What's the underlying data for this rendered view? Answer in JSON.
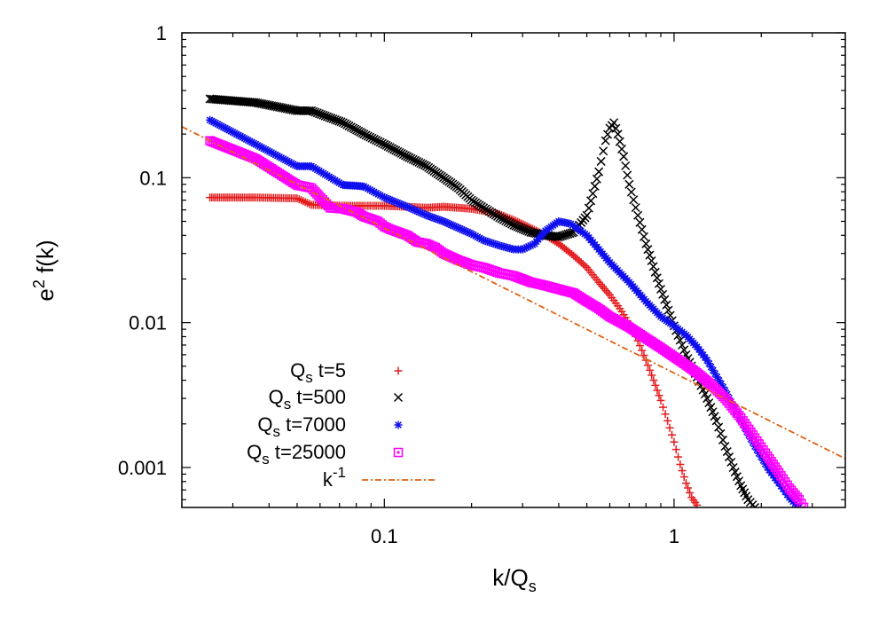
{
  "chart_data": {
    "type": "scatter",
    "title": "",
    "xlabel": "k/Q",
    "xlabel_sub": "s",
    "ylabel": "e",
    "ylabel_sup": "2",
    "ylabel_tail": " f(k)",
    "xscale": "log",
    "yscale": "log",
    "xlim": [
      0.02,
      3.9
    ],
    "ylim": [
      0.00053,
      1
    ],
    "x_ticks": [
      {
        "value": 0.1,
        "label": "0.1"
      },
      {
        "value": 1,
        "label": "1"
      }
    ],
    "y_ticks": [
      {
        "value": 0.001,
        "label": "0.001"
      },
      {
        "value": 0.01,
        "label": "0.01"
      },
      {
        "value": 0.1,
        "label": "0.1"
      },
      {
        "value": 1,
        "label": "1"
      }
    ],
    "grid": false,
    "legend_position": "bottom-left",
    "series": [
      {
        "name": "t=5",
        "name_prefix": "Q",
        "name_sub": "s",
        "marker": "plus",
        "color": "#e41a1c",
        "points": [
          [
            0.025,
            0.073
          ],
          [
            0.036,
            0.073
          ],
          [
            0.05,
            0.072
          ],
          [
            0.056,
            0.065
          ],
          [
            0.072,
            0.064
          ],
          [
            0.085,
            0.064
          ],
          [
            0.1,
            0.064
          ],
          [
            0.12,
            0.063
          ],
          [
            0.14,
            0.062
          ],
          [
            0.16,
            0.063
          ],
          [
            0.18,
            0.062
          ],
          [
            0.2,
            0.061
          ],
          [
            0.22,
            0.059
          ],
          [
            0.25,
            0.056
          ],
          [
            0.28,
            0.051
          ],
          [
            0.32,
            0.045
          ],
          [
            0.36,
            0.04
          ],
          [
            0.4,
            0.035
          ],
          [
            0.45,
            0.029
          ],
          [
            0.5,
            0.024
          ],
          [
            0.55,
            0.019
          ],
          [
            0.6,
            0.0155
          ],
          [
            0.65,
            0.0125
          ],
          [
            0.7,
            0.0098
          ],
          [
            0.75,
            0.0075
          ],
          [
            0.8,
            0.0055
          ],
          [
            0.85,
            0.004
          ],
          [
            0.9,
            0.0029
          ],
          [
            0.95,
            0.0021
          ],
          [
            1.0,
            0.0015
          ],
          [
            1.05,
            0.00105
          ],
          [
            1.1,
            0.00078
          ],
          [
            1.15,
            0.00062
          ],
          [
            1.2,
            0.00055
          ]
        ]
      },
      {
        "name": "t=500",
        "name_prefix": "Q",
        "name_sub": "s",
        "marker": "cross",
        "color": "#000000",
        "points": [
          [
            0.025,
            0.35
          ],
          [
            0.036,
            0.33
          ],
          [
            0.05,
            0.29
          ],
          [
            0.056,
            0.29
          ],
          [
            0.072,
            0.24
          ],
          [
            0.078,
            0.22
          ],
          [
            0.085,
            0.2
          ],
          [
            0.1,
            0.17
          ],
          [
            0.12,
            0.14
          ],
          [
            0.14,
            0.12
          ],
          [
            0.16,
            0.1
          ],
          [
            0.18,
            0.085
          ],
          [
            0.2,
            0.07
          ],
          [
            0.22,
            0.062
          ],
          [
            0.25,
            0.053
          ],
          [
            0.28,
            0.047
          ],
          [
            0.32,
            0.042
          ],
          [
            0.36,
            0.04
          ],
          [
            0.4,
            0.039
          ],
          [
            0.45,
            0.042
          ],
          [
            0.5,
            0.055
          ],
          [
            0.55,
            0.11
          ],
          [
            0.58,
            0.18
          ],
          [
            0.6,
            0.22
          ],
          [
            0.62,
            0.24
          ],
          [
            0.64,
            0.2
          ],
          [
            0.67,
            0.14
          ],
          [
            0.7,
            0.09
          ],
          [
            0.75,
            0.055
          ],
          [
            0.8,
            0.035
          ],
          [
            0.9,
            0.017
          ],
          [
            1.0,
            0.0095
          ],
          [
            1.1,
            0.006
          ],
          [
            1.2,
            0.0042
          ],
          [
            1.3,
            0.003
          ],
          [
            1.4,
            0.0021
          ],
          [
            1.5,
            0.0014
          ],
          [
            1.6,
            0.001
          ],
          [
            1.7,
            0.00075
          ],
          [
            1.8,
            0.0006
          ],
          [
            1.9,
            0.00053
          ]
        ]
      },
      {
        "name": "t=7000",
        "name_prefix": "Q",
        "name_sub": "s",
        "marker": "star",
        "color": "#1010ee",
        "points": [
          [
            0.025,
            0.25
          ],
          [
            0.036,
            0.17
          ],
          [
            0.05,
            0.12
          ],
          [
            0.056,
            0.12
          ],
          [
            0.072,
            0.089
          ],
          [
            0.08,
            0.088
          ],
          [
            0.085,
            0.087
          ],
          [
            0.1,
            0.073
          ],
          [
            0.12,
            0.063
          ],
          [
            0.14,
            0.055
          ],
          [
            0.16,
            0.05
          ],
          [
            0.18,
            0.045
          ],
          [
            0.2,
            0.041
          ],
          [
            0.22,
            0.037
          ],
          [
            0.25,
            0.034
          ],
          [
            0.28,
            0.032
          ],
          [
            0.3,
            0.032
          ],
          [
            0.33,
            0.035
          ],
          [
            0.36,
            0.043
          ],
          [
            0.4,
            0.05
          ],
          [
            0.44,
            0.048
          ],
          [
            0.5,
            0.04
          ],
          [
            0.55,
            0.032
          ],
          [
            0.6,
            0.026
          ],
          [
            0.7,
            0.019
          ],
          [
            0.8,
            0.014
          ],
          [
            0.9,
            0.011
          ],
          [
            1.0,
            0.0095
          ],
          [
            1.1,
            0.0082
          ],
          [
            1.2,
            0.0068
          ],
          [
            1.3,
            0.0055
          ],
          [
            1.5,
            0.0034
          ],
          [
            1.7,
            0.0021
          ],
          [
            1.9,
            0.0014
          ],
          [
            2.1,
            0.001
          ],
          [
            2.3,
            0.00078
          ],
          [
            2.5,
            0.00062
          ],
          [
            2.7,
            0.00053
          ]
        ]
      },
      {
        "name": "t=25000",
        "name_prefix": "Q",
        "name_sub": "s",
        "marker": "box",
        "color": "#ff00ff",
        "points": [
          [
            0.025,
            0.18
          ],
          [
            0.036,
            0.135
          ],
          [
            0.05,
            0.089
          ],
          [
            0.056,
            0.085
          ],
          [
            0.065,
            0.062
          ],
          [
            0.072,
            0.061
          ],
          [
            0.08,
            0.058
          ],
          [
            0.085,
            0.054
          ],
          [
            0.095,
            0.05
          ],
          [
            0.1,
            0.046
          ],
          [
            0.105,
            0.044
          ],
          [
            0.12,
            0.04
          ],
          [
            0.13,
            0.036
          ],
          [
            0.14,
            0.035
          ],
          [
            0.15,
            0.033
          ],
          [
            0.16,
            0.03
          ],
          [
            0.18,
            0.027
          ],
          [
            0.2,
            0.025
          ],
          [
            0.22,
            0.024
          ],
          [
            0.25,
            0.022
          ],
          [
            0.28,
            0.021
          ],
          [
            0.32,
            0.019
          ],
          [
            0.36,
            0.018
          ],
          [
            0.4,
            0.017
          ],
          [
            0.45,
            0.016
          ],
          [
            0.5,
            0.014
          ],
          [
            0.55,
            0.0125
          ],
          [
            0.6,
            0.011
          ],
          [
            0.7,
            0.0093
          ],
          [
            0.8,
            0.0078
          ],
          [
            0.9,
            0.0067
          ],
          [
            1.0,
            0.0058
          ],
          [
            1.1,
            0.0051
          ],
          [
            1.2,
            0.0045
          ],
          [
            1.35,
            0.0037
          ],
          [
            1.5,
            0.003
          ],
          [
            1.7,
            0.0022
          ],
          [
            1.9,
            0.0016
          ],
          [
            2.1,
            0.0012
          ],
          [
            2.3,
            0.00092
          ],
          [
            2.5,
            0.00072
          ],
          [
            2.7,
            0.0006
          ],
          [
            2.8,
            0.00053
          ]
        ]
      },
      {
        "name": "k",
        "name_sup": "-1",
        "marker": "line",
        "color": "#e06010",
        "points": [
          [
            0.02,
            0.225
          ],
          [
            3.9,
            0.00115
          ]
        ]
      }
    ]
  }
}
